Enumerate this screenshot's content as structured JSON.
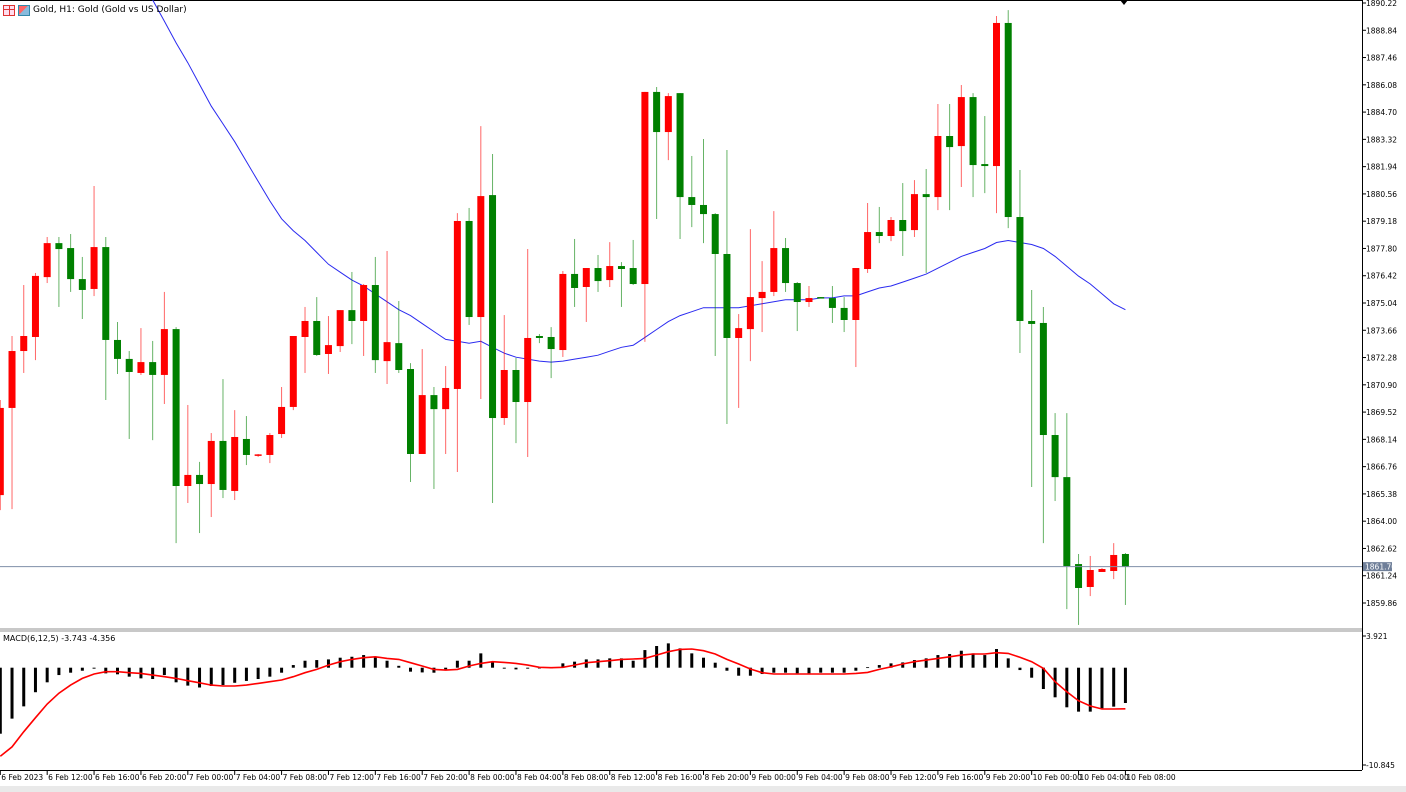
{
  "header": {
    "symbol_title": "Gold, H1:  Gold (Gold vs US Dollar)",
    "icons": [
      "grid-icon",
      "chart-icon"
    ]
  },
  "macd_label": "MACD(6,12,5) -3.743 -4.356",
  "current_price_label": "1861.70",
  "colors": {
    "up": "#ff0000",
    "down": "#008000",
    "ma": "#2a2af0",
    "signal": "#ff0000",
    "histogram": "#000000",
    "price_line": "#7f8fa8"
  },
  "chart_data": [
    {
      "type": "candlestick",
      "title": "Gold, H1",
      "timeframe": "H1",
      "y_ticks": [
        "1890.22",
        "1888.84",
        "1887.46",
        "1886.08",
        "1884.70",
        "1883.32",
        "1881.94",
        "1880.56",
        "1879.18",
        "1877.80",
        "1876.42",
        "1875.04",
        "1873.66",
        "1872.28",
        "1870.90",
        "1869.52",
        "1868.14",
        "1866.76",
        "1865.38",
        "1864.00",
        "1862.62",
        "1861.24",
        "1859.86"
      ],
      "ylim": [
        1859.0,
        1890.22
      ],
      "x_labels": [
        "6 Feb 2023",
        "6 Feb 12:00",
        "6 Feb 16:00",
        "6 Feb 20:00",
        "7 Feb 00:00",
        "7 Feb 04:00",
        "7 Feb 08:00",
        "7 Feb 12:00",
        "7 Feb 16:00",
        "7 Feb 20:00",
        "8 Feb 00:00",
        "8 Feb 04:00",
        "8 Feb 08:00",
        "8 Feb 12:00",
        "8 Feb 16:00",
        "8 Feb 20:00",
        "9 Feb 00:00",
        "9 Feb 04:00",
        "9 Feb 08:00",
        "9 Feb 12:00",
        "9 Feb 16:00",
        "9 Feb 20:00",
        "10 Feb 00:00",
        "10 Feb 04:00",
        "10 Feb 08:00"
      ],
      "x_label_every_n_bars": 4,
      "current_price": 1861.7,
      "candles_ohlc": [
        [
          1865.32,
          1870.13,
          1864.56,
          1869.73
        ],
        [
          1869.73,
          1873.37,
          1864.61,
          1872.61
        ],
        [
          1872.61,
          1875.95,
          1871.5,
          1873.37
        ],
        [
          1873.32,
          1876.56,
          1872.15,
          1876.41
        ],
        [
          1876.35,
          1878.38,
          1876.05,
          1878.07
        ],
        [
          1878.07,
          1878.38,
          1874.84,
          1877.77
        ],
        [
          1877.82,
          1878.53,
          1875.6,
          1876.25
        ],
        [
          1876.25,
          1877.37,
          1874.23,
          1875.7
        ],
        [
          1875.75,
          1880.96,
          1875.39,
          1877.87
        ],
        [
          1877.87,
          1878.38,
          1870.13,
          1873.17
        ],
        [
          1873.17,
          1874.08,
          1871.45,
          1872.21
        ],
        [
          1872.21,
          1872.61,
          1868.16,
          1871.55
        ],
        [
          1871.5,
          1873.77,
          1871.4,
          1872.05
        ],
        [
          1872.05,
          1873.12,
          1868.1,
          1871.4
        ],
        [
          1871.4,
          1875.6,
          1869.93,
          1873.72
        ],
        [
          1873.72,
          1873.82,
          1862.89,
          1865.78
        ],
        [
          1865.78,
          1869.88,
          1864.92,
          1866.34
        ],
        [
          1866.34,
          1867.0,
          1863.4,
          1865.88
        ],
        [
          1865.88,
          1868.46,
          1864.21,
          1868.06
        ],
        [
          1868.06,
          1871.19,
          1865.17,
          1865.58
        ],
        [
          1865.53,
          1869.62,
          1865.07,
          1868.26
        ],
        [
          1868.16,
          1869.32,
          1866.84,
          1867.35
        ],
        [
          1867.35,
          1867.4,
          1867.25,
          1867.38
        ],
        [
          1867.35,
          1868.46,
          1866.94,
          1868.36
        ],
        [
          1868.41,
          1870.79,
          1868.21,
          1869.78
        ],
        [
          1869.78,
          1873.37,
          1869.62,
          1873.37
        ],
        [
          1873.32,
          1874.84,
          1871.5,
          1874.13
        ],
        [
          1874.13,
          1875.34,
          1872.36,
          1872.41
        ],
        [
          1872.46,
          1874.38,
          1871.45,
          1872.91
        ],
        [
          1872.86,
          1874.68,
          1872.56,
          1874.68
        ],
        [
          1874.68,
          1876.61,
          1872.96,
          1874.13
        ],
        [
          1874.13,
          1876.0,
          1872.36,
          1875.95
        ],
        [
          1875.95,
          1877.37,
          1871.5,
          1872.15
        ],
        [
          1872.1,
          1877.67,
          1870.94,
          1873.06
        ],
        [
          1873.01,
          1875.14,
          1871.5,
          1871.65
        ],
        [
          1871.7,
          1872.0,
          1865.98,
          1867.4
        ],
        [
          1867.4,
          1872.71,
          1867.4,
          1870.38
        ],
        [
          1870.38,
          1870.79,
          1865.63,
          1869.67
        ],
        [
          1869.67,
          1871.85,
          1867.4,
          1870.74
        ],
        [
          1870.69,
          1879.59,
          1866.49,
          1879.19
        ],
        [
          1879.19,
          1879.85,
          1873.93,
          1874.33
        ],
        [
          1874.33,
          1883.99,
          1870.18,
          1880.45
        ],
        [
          1880.5,
          1882.58,
          1864.92,
          1869.22
        ],
        [
          1869.22,
          1874.43,
          1868.87,
          1871.65
        ],
        [
          1871.65,
          1872.26,
          1867.95,
          1870.03
        ],
        [
          1870.03,
          1877.77,
          1867.25,
          1873.27
        ],
        [
          1873.37,
          1873.47,
          1873.01,
          1873.27
        ],
        [
          1873.32,
          1873.82,
          1871.24,
          1872.71
        ],
        [
          1872.66,
          1876.66,
          1872.31,
          1876.51
        ],
        [
          1876.51,
          1878.28,
          1874.84,
          1875.8
        ],
        [
          1875.85,
          1876.81,
          1874.08,
          1876.81
        ],
        [
          1876.81,
          1877.47,
          1875.6,
          1876.15
        ],
        [
          1876.2,
          1878.12,
          1875.85,
          1876.91
        ],
        [
          1876.91,
          1877.11,
          1874.84,
          1876.76
        ],
        [
          1876.81,
          1878.23,
          1875.95,
          1876.0
        ],
        [
          1876.0,
          1885.72,
          1873.07,
          1885.72
        ],
        [
          1885.72,
          1885.97,
          1879.29,
          1883.69
        ],
        [
          1883.69,
          1885.66,
          1882.27,
          1885.51
        ],
        [
          1885.66,
          1885.66,
          1878.28,
          1880.4
        ],
        [
          1880.4,
          1882.48,
          1878.88,
          1880.0
        ],
        [
          1880.0,
          1883.34,
          1878.07,
          1879.54
        ],
        [
          1879.54,
          1879.59,
          1872.36,
          1877.52
        ],
        [
          1877.52,
          1882.78,
          1868.92,
          1873.27
        ],
        [
          1873.27,
          1874.48,
          1869.73,
          1873.77
        ],
        [
          1873.72,
          1878.78,
          1872.1,
          1875.34
        ],
        [
          1875.29,
          1877.16,
          1873.57,
          1875.6
        ],
        [
          1875.6,
          1879.69,
          1875.39,
          1877.82
        ],
        [
          1877.82,
          1878.33,
          1875.6,
          1876.05
        ],
        [
          1876.05,
          1876.1,
          1873.62,
          1875.09
        ],
        [
          1875.09,
          1875.9,
          1874.84,
          1875.29
        ],
        [
          1875.34,
          1875.34,
          1875.29,
          1875.29
        ],
        [
          1875.29,
          1875.9,
          1874.03,
          1874.79
        ],
        [
          1874.79,
          1875.34,
          1873.57,
          1874.18
        ],
        [
          1874.18,
          1876.81,
          1871.8,
          1876.81
        ],
        [
          1876.76,
          1880.1,
          1876.56,
          1878.63
        ],
        [
          1878.63,
          1879.9,
          1878.07,
          1878.43
        ],
        [
          1878.43,
          1879.39,
          1878.17,
          1879.24
        ],
        [
          1879.24,
          1881.11,
          1877.42,
          1878.68
        ],
        [
          1878.73,
          1881.26,
          1878.38,
          1880.55
        ],
        [
          1880.55,
          1881.82,
          1876.56,
          1880.4
        ],
        [
          1880.4,
          1885.11,
          1879.74,
          1883.49
        ],
        [
          1883.49,
          1885.11,
          1879.74,
          1882.93
        ],
        [
          1882.98,
          1886.07,
          1880.91,
          1885.46
        ],
        [
          1885.46,
          1885.66,
          1880.4,
          1882.02
        ],
        [
          1882.07,
          1884.5,
          1880.6,
          1881.97
        ],
        [
          1881.97,
          1889.56,
          1879.59,
          1889.21
        ],
        [
          1889.21,
          1889.86,
          1878.83,
          1879.39
        ],
        [
          1879.39,
          1881.77,
          1872.51,
          1874.13
        ],
        [
          1874.13,
          1875.7,
          1865.73,
          1873.98
        ],
        [
          1874.03,
          1874.84,
          1862.89,
          1868.36
        ],
        [
          1868.36,
          1869.47,
          1865.02,
          1866.23
        ],
        [
          1866.23,
          1869.47,
          1859.55,
          1861.73
        ],
        [
          1861.83,
          1862.34,
          1858.75,
          1860.62
        ],
        [
          1860.67,
          1862.24,
          1860.21,
          1861.53
        ],
        [
          1861.43,
          1861.63,
          1861.43,
          1861.58
        ],
        [
          1861.48,
          1862.89,
          1861.07,
          1862.29
        ],
        [
          1862.34,
          1862.39,
          1859.76,
          1861.7
        ]
      ],
      "moving_average": [
        null,
        null,
        null,
        null,
        null,
        null,
        null,
        null,
        null,
        null,
        null,
        null,
        null,
        1890.4,
        1889.3,
        1888.2,
        1887.2,
        1886.1,
        1885.0,
        1884.1,
        1883.2,
        1882.2,
        1881.2,
        1880.2,
        1879.3,
        1878.7,
        1878.2,
        1877.6,
        1877.0,
        1876.6,
        1876.2,
        1875.9,
        1875.5,
        1875.1,
        1874.7,
        1874.4,
        1874.0,
        1873.6,
        1873.2,
        1873.1,
        1873.0,
        1873.1,
        1872.8,
        1872.5,
        1872.3,
        1872.2,
        1872.1,
        1872.05,
        1872.1,
        1872.2,
        1872.3,
        1872.4,
        1872.6,
        1872.8,
        1872.9,
        1873.3,
        1873.7,
        1874.1,
        1874.4,
        1874.6,
        1874.8,
        1874.8,
        1874.8,
        1874.8,
        1874.9,
        1875.0,
        1875.1,
        1875.2,
        1875.2,
        1875.2,
        1875.3,
        1875.3,
        1875.4,
        1875.4,
        1875.6,
        1875.8,
        1875.9,
        1876.1,
        1876.3,
        1876.5,
        1876.8,
        1877.1,
        1877.4,
        1877.6,
        1877.8,
        1878.1,
        1878.2,
        1878.1,
        1878.0,
        1877.8,
        1877.4,
        1876.9,
        1876.4,
        1876.0,
        1875.5,
        1875.0,
        1874.7
      ]
    },
    {
      "type": "bar+line",
      "title": "MACD(6,12,5)",
      "y_ticks": [
        "3.921",
        "-10.845"
      ],
      "ylim": [
        -10.845,
        3.921
      ],
      "histogram": [
        -7.0,
        -5.4,
        -4.1,
        -2.6,
        -1.55,
        -0.78,
        -0.53,
        -0.32,
        -0.1,
        -0.6,
        -0.7,
        -0.95,
        -1.13,
        -1.2,
        -0.78,
        -1.55,
        -1.9,
        -2.1,
        -1.94,
        -1.84,
        -1.6,
        -1.4,
        -1.2,
        -0.95,
        -0.53,
        0.28,
        0.74,
        0.81,
        0.88,
        1.06,
        1.16,
        1.34,
        1.16,
        0.74,
        0.2,
        -0.42,
        -0.5,
        -0.53,
        -0.18,
        0.74,
        0.74,
        1.52,
        0.6,
        -0.1,
        -0.18,
        -0.1,
        0.0,
        0.0,
        0.46,
        0.64,
        0.88,
        0.88,
        0.99,
        0.99,
        0.74,
        1.87,
        2.3,
        2.58,
        2.05,
        1.52,
        1.06,
        0.53,
        -0.32,
        -0.85,
        -0.85,
        -0.67,
        -0.53,
        -0.53,
        -0.6,
        -0.6,
        -0.53,
        -0.53,
        -0.53,
        -0.32,
        0.05,
        0.28,
        0.46,
        0.56,
        0.81,
        0.99,
        1.34,
        1.45,
        1.8,
        1.52,
        1.34,
        1.98,
        0.99,
        -0.25,
        -1.06,
        -2.26,
        -3.14,
        -4.2,
        -4.66,
        -4.66,
        -4.31,
        -4.13,
        -3.743
      ],
      "signal": [
        -9.4,
        -8.4,
        -6.8,
        -5.3,
        -3.85,
        -2.7,
        -1.84,
        -1.13,
        -0.67,
        -0.42,
        -0.42,
        -0.53,
        -0.6,
        -0.78,
        -0.95,
        -1.13,
        -1.38,
        -1.6,
        -1.84,
        -1.94,
        -1.94,
        -1.84,
        -1.66,
        -1.48,
        -1.3,
        -0.95,
        -0.53,
        -0.18,
        0.28,
        0.64,
        0.88,
        1.06,
        1.16,
        0.99,
        0.88,
        0.53,
        0.18,
        -0.18,
        -0.25,
        -0.18,
        0.18,
        0.46,
        0.64,
        0.56,
        0.46,
        0.28,
        0.04,
        0.0,
        0.04,
        0.28,
        0.53,
        0.64,
        0.74,
        0.88,
        0.92,
        0.99,
        1.34,
        1.7,
        1.94,
        1.98,
        1.8,
        1.45,
        0.88,
        0.39,
        -0.14,
        -0.53,
        -0.67,
        -0.67,
        -0.67,
        -0.67,
        -0.67,
        -0.67,
        -0.67,
        -0.6,
        -0.5,
        -0.18,
        0.1,
        0.39,
        0.64,
        0.81,
        0.99,
        1.16,
        1.34,
        1.45,
        1.45,
        1.59,
        1.52,
        1.1,
        0.64,
        -0.07,
        -1.48,
        -2.54,
        -3.5,
        -4.06,
        -4.38,
        -4.38,
        -4.356
      ]
    }
  ]
}
